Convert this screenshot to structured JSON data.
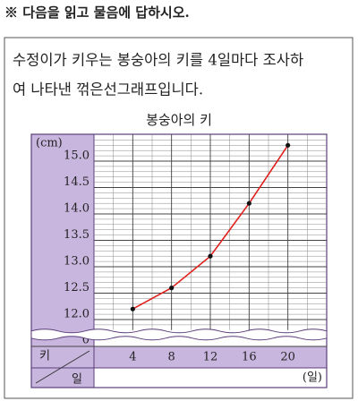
{
  "instruction": "※ 다음을 읽고 물음에 답하시오.",
  "passage": [
    "수정이가 키우는 봉숭아의 키를 4일마다 조사하",
    "여 나타낸 꺾은선그래프입니다."
  ],
  "chart_data": {
    "type": "line",
    "title": "봉숭아의 키",
    "y_label": "(cm)",
    "x_label": "(일)",
    "corner_labels": [
      "키",
      "일"
    ],
    "x": [
      4,
      8,
      12,
      16,
      20
    ],
    "series": [
      {
        "name": "키",
        "color": "#e0201c",
        "values": [
          12.2,
          12.6,
          13.2,
          14.2,
          15.3
        ]
      }
    ],
    "xlim": [
      0,
      24
    ],
    "xticks": [
      4,
      8,
      12,
      16,
      20
    ],
    "ylim": [
      11.8,
      15.5
    ],
    "yticks": [
      0,
      {
        "value": 12,
        "label": "12.0"
      },
      12.5,
      {
        "value": 13,
        "label": "13.0"
      },
      13.5,
      {
        "value": 14,
        "label": "14.0"
      },
      14.5,
      {
        "value": 15,
        "label": "15.0"
      }
    ],
    "grid": true
  }
}
